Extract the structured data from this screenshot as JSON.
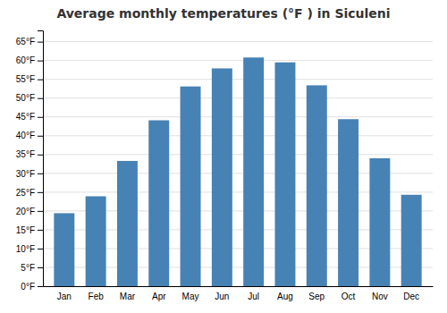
{
  "chart_data": {
    "type": "bar",
    "title": "Average monthly temperatures (°F ) in Siculeni",
    "categories": [
      "Jan",
      "Feb",
      "Mar",
      "Apr",
      "May",
      "Jun",
      "Jul",
      "Aug",
      "Sep",
      "Oct",
      "Nov",
      "Dec"
    ],
    "values": [
      19.4,
      23.9,
      33.3,
      44.1,
      53.1,
      57.9,
      60.8,
      59.5,
      53.4,
      44.4,
      34.0,
      24.3
    ],
    "ylim": [
      0,
      68
    ],
    "yticks": [
      {
        "value": 0,
        "label": "0°F"
      },
      {
        "value": 5,
        "label": "5°F"
      },
      {
        "value": 10,
        "label": "10°F"
      },
      {
        "value": 15,
        "label": "15°F"
      },
      {
        "value": 20,
        "label": "20°F"
      },
      {
        "value": 25,
        "label": "25°F"
      },
      {
        "value": 30,
        "label": "30°F"
      },
      {
        "value": 35,
        "label": "35°F"
      },
      {
        "value": 40,
        "label": "40°F"
      },
      {
        "value": 45,
        "label": "45°F"
      },
      {
        "value": 50,
        "label": "50°F"
      },
      {
        "value": 55,
        "label": "55°F"
      },
      {
        "value": 60,
        "label": "60°F"
      },
      {
        "value": 65,
        "label": "65°F"
      }
    ],
    "grid": true
  }
}
